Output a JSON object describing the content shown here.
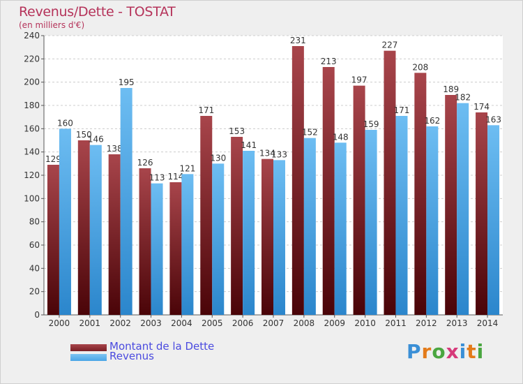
{
  "header": {
    "title": "Revenus/Dette - TOSTAT",
    "subtitle": "(en milliers d'€)"
  },
  "legend": {
    "items": [
      {
        "label": "Montant de la Dette",
        "color": "#7a1f24"
      },
      {
        "label": "Revenus",
        "color": "#4ba6e6"
      }
    ]
  },
  "logo": {
    "text": "Proxiti",
    "letter_colors": [
      "#3a8fd6",
      "#e37b1a",
      "#4aa640",
      "#d63a7a",
      "#3a8fd6",
      "#e37b1a",
      "#4aa640"
    ]
  },
  "chart_data": {
    "type": "bar",
    "title": "Revenus/Dette - TOSTAT",
    "subtitle": "(en milliers d'€)",
    "categories": [
      "2000",
      "2001",
      "2002",
      "2003",
      "2004",
      "2005",
      "2006",
      "2007",
      "2008",
      "2009",
      "2010",
      "2011",
      "2012",
      "2013",
      "2014"
    ],
    "series": [
      {
        "name": "Montant de la Dette",
        "color": "#7a1f24",
        "values": [
          129,
          150,
          138,
          126,
          114,
          171,
          153,
          134,
          231,
          213,
          197,
          227,
          208,
          189,
          174
        ]
      },
      {
        "name": "Revenus",
        "color": "#4ba6e6",
        "values": [
          160,
          146,
          195,
          113,
          121,
          130,
          141,
          133,
          152,
          148,
          159,
          171,
          162,
          182,
          163
        ]
      }
    ],
    "ylim": [
      0,
      240
    ],
    "yticks": [
      0,
      20,
      40,
      60,
      80,
      100,
      120,
      140,
      160,
      180,
      200,
      220,
      240
    ],
    "grid": true,
    "legend_position": "bottom-left"
  }
}
